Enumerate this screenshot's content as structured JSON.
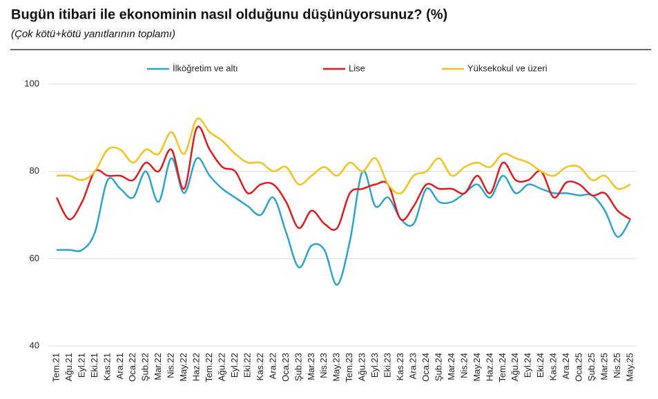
{
  "chart_data": {
    "type": "line",
    "title": "Bugün itibari ile ekonominin nasıl olduğunu düşünüyorsunuz? (%)",
    "subtitle": "(Çok kötü+kötü yanıtlarının toplamı)",
    "categories": [
      "Tem.21",
      "Ağu.21",
      "Eyl.21",
      "Eki.21",
      "Kas.21",
      "Ara.21",
      "Oca.22",
      "Şub.22",
      "Mar.22",
      "Nis.22",
      "May.22",
      "Haz.22",
      "Tem.22",
      "Ağu.22",
      "Eyl.22",
      "Eki.22",
      "Kas.22",
      "Ara.22",
      "Oca.23",
      "Şub.23",
      "Mar.23",
      "Nis.23",
      "May.23",
      "Tem.23",
      "Ağu.23",
      "Eyl.23",
      "Eki.23",
      "Kas.23",
      "Ara.23",
      "Oca.24",
      "Şub.24",
      "Mar.24",
      "Nis.24",
      "May.24",
      "Haz.24",
      "Tem.24",
      "Ağu.24",
      "Eyl.24",
      "Eki.24",
      "Kas.24",
      "Ara.24",
      "Oca.25",
      "Şub.25",
      "Mar.25",
      "Nis.25",
      "May.25"
    ],
    "series": [
      {
        "name": "İlköğretim ve altı",
        "color": "#2ba3cf",
        "values": [
          62,
          62,
          62,
          66,
          78,
          76,
          74,
          80,
          73,
          83,
          75,
          83,
          79,
          76,
          74,
          72,
          70,
          74,
          66,
          58,
          63,
          62,
          54,
          64,
          80,
          72,
          74,
          69,
          68,
          76,
          73,
          73,
          75,
          77,
          74,
          79,
          75,
          77,
          76,
          75,
          75,
          74.5,
          74.5,
          71,
          65,
          69
        ]
      },
      {
        "name": "Lise",
        "color": "#e0191b",
        "values": [
          74,
          69,
          73,
          80,
          79,
          79,
          78,
          82,
          80,
          85,
          76,
          90,
          85,
          81,
          80,
          75,
          77,
          77,
          73,
          67,
          71,
          68,
          67,
          75,
          76,
          77,
          77,
          69,
          72,
          77,
          76,
          76,
          75,
          79,
          75,
          82,
          78,
          78,
          80,
          74,
          77.5,
          77,
          74.5,
          75,
          71,
          69
        ]
      },
      {
        "name": "Yüksekokul ve üzeri",
        "color": "#f5c21b",
        "values": [
          79,
          79,
          78,
          80,
          85,
          85,
          82,
          85,
          84,
          89,
          84,
          92,
          89,
          87,
          84,
          82,
          82,
          80,
          81,
          77,
          79,
          81,
          79,
          82,
          80,
          83,
          77,
          75,
          79,
          80,
          83,
          79,
          81,
          82,
          81,
          84,
          83,
          82,
          80,
          79,
          81,
          81,
          78,
          79,
          76,
          77
        ]
      }
    ],
    "ylim": [
      40,
      100
    ],
    "yticks": [
      40,
      60,
      80,
      100
    ],
    "grid": true,
    "legend": "top"
  }
}
